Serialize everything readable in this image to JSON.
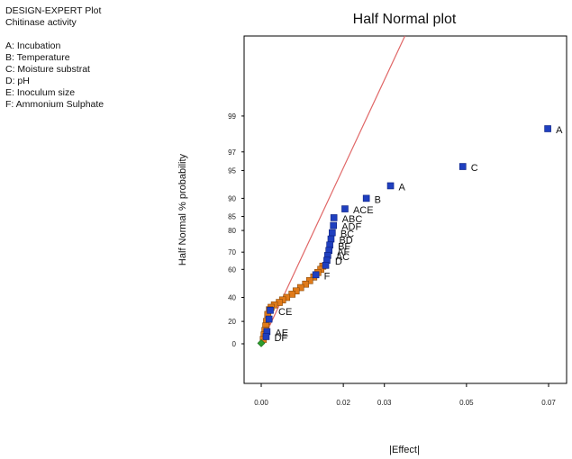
{
  "info": {
    "program": "DESIGN-EXPERT Plot",
    "response": "Chitinase activity",
    "factors": [
      "A: Incubation",
      "B: Temperature",
      "C: Moisture substrat",
      "D: pH",
      "E: Inoculum size",
      "F: Ammonium Sulphate"
    ]
  },
  "chart_data": {
    "type": "scatter",
    "title": "Half Normal plot",
    "xlabel": "|Effect|",
    "ylabel": "Half Normal % probability",
    "xlim": [
      0,
      0.07
    ],
    "x_ticks": [
      "0.00",
      "0.02",
      "0.03",
      "0.05",
      "0.07"
    ],
    "y_ticks": [
      "0",
      "20",
      "40",
      "60",
      "70",
      "80",
      "85",
      "90",
      "95",
      "97",
      "99"
    ],
    "grid": false,
    "colors": {
      "selected_effect": "#1f3fbf",
      "error_estimate": "#e07b1a",
      "origin_point": "#2e9e2e",
      "reference_line": "#e06666"
    },
    "reference_line": {
      "x": [
        0,
        0.035
      ],
      "y": [
        0,
        99.95
      ]
    },
    "series": [
      {
        "role": "effects",
        "points": [
          {
            "x": 0.0698,
            "y": 98.5,
            "label": "A"
          },
          {
            "x": 0.0491,
            "y": 95.5,
            "label": "C"
          },
          {
            "x": 0.0315,
            "y": 92.6,
            "label": "A"
          },
          {
            "x": 0.0256,
            "y": 90.0,
            "label": "B"
          },
          {
            "x": 0.0204,
            "y": 87.3,
            "label": "ACE"
          },
          {
            "x": 0.0177,
            "y": 84.6,
            "label": "ABC"
          },
          {
            "x": 0.0176,
            "y": 81.9,
            "label": "ADF"
          },
          {
            "x": 0.0173,
            "y": 79.1,
            "label": "BC"
          },
          {
            "x": 0.017,
            "y": 76.4,
            "label": "BD"
          },
          {
            "x": 0.0167,
            "y": 73.6,
            "label": "BF"
          },
          {
            "x": 0.0165,
            "y": 70.9,
            "label": "AF"
          },
          {
            "x": 0.0162,
            "y": 68.2,
            "label": "AC"
          },
          {
            "x": 0.016,
            "y": 65.5,
            "label": "D"
          },
          {
            "x": 0.0157,
            "y": 62.5
          },
          {
            "x": 0.0133,
            "y": 56.5,
            "label": "F"
          },
          {
            "x": 0.0022,
            "y": 29.5,
            "label": "CE"
          },
          {
            "x": 0.0019,
            "y": 22.0
          },
          {
            "x": 0.0014,
            "y": 11.0,
            "label": "AE"
          },
          {
            "x": 0.0012,
            "y": 6.5,
            "label": "DF"
          }
        ]
      },
      {
        "role": "error",
        "points": [
          {
            "x": 0.015,
            "y": 62.0
          },
          {
            "x": 0.0145,
            "y": 60.0
          },
          {
            "x": 0.0138,
            "y": 58.0
          },
          {
            "x": 0.0128,
            "y": 55.0
          },
          {
            "x": 0.0118,
            "y": 52.5
          },
          {
            "x": 0.0108,
            "y": 50.0
          },
          {
            "x": 0.0096,
            "y": 47.5
          },
          {
            "x": 0.0085,
            "y": 45.0
          },
          {
            "x": 0.0075,
            "y": 42.5
          },
          {
            "x": 0.0062,
            "y": 40.0
          },
          {
            "x": 0.0052,
            "y": 38.0
          },
          {
            "x": 0.0044,
            "y": 36.0
          },
          {
            "x": 0.0032,
            "y": 34.0
          },
          {
            "x": 0.0024,
            "y": 32.0
          },
          {
            "x": 0.002,
            "y": 30.0
          },
          {
            "x": 0.0016,
            "y": 26.0
          },
          {
            "x": 0.0013,
            "y": 20.0
          },
          {
            "x": 0.0011,
            "y": 16.0
          },
          {
            "x": 0.0009,
            "y": 12.0
          },
          {
            "x": 0.0007,
            "y": 8.0
          },
          {
            "x": 0.0005,
            "y": 4.0
          }
        ]
      },
      {
        "role": "origin",
        "points": [
          {
            "x": 0.0,
            "y": 0.5
          }
        ]
      }
    ]
  }
}
